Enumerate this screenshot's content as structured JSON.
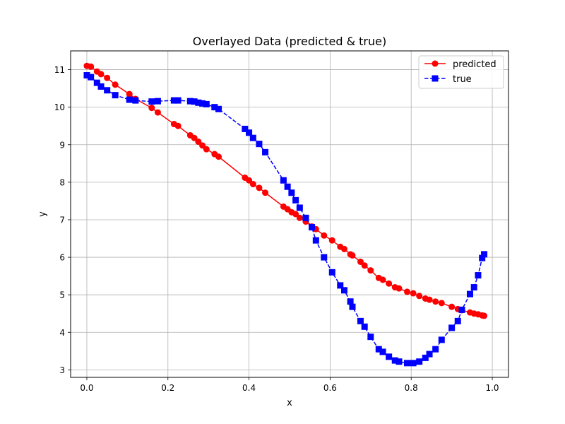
{
  "chart_data": {
    "type": "line",
    "title": "Overlayed Data (predicted & true)",
    "xlabel": "x",
    "ylabel": "y",
    "xlim": [
      -0.04,
      1.04
    ],
    "ylim": [
      2.8,
      11.5
    ],
    "xticks": [
      0.0,
      0.2,
      0.4,
      0.6,
      0.8,
      1.0
    ],
    "xtick_labels": [
      "0.0",
      "0.2",
      "0.4",
      "0.6",
      "0.8",
      "1.0"
    ],
    "yticks": [
      3,
      4,
      5,
      6,
      7,
      8,
      9,
      10,
      11
    ],
    "ytick_labels": [
      "3",
      "4",
      "5",
      "6",
      "7",
      "8",
      "9",
      "10",
      "11"
    ],
    "grid": true,
    "legend_position": "top-right",
    "series": [
      {
        "name": "predicted",
        "color": "#ff0000",
        "linestyle": "solid",
        "marker": "circle",
        "x": [
          0.0,
          0.01,
          0.025,
          0.035,
          0.05,
          0.07,
          0.105,
          0.12,
          0.16,
          0.175,
          0.215,
          0.225,
          0.255,
          0.265,
          0.275,
          0.285,
          0.295,
          0.315,
          0.325,
          0.39,
          0.4,
          0.41,
          0.425,
          0.44,
          0.485,
          0.495,
          0.505,
          0.515,
          0.525,
          0.54,
          0.555,
          0.565,
          0.585,
          0.605,
          0.625,
          0.635,
          0.65,
          0.655,
          0.675,
          0.685,
          0.7,
          0.72,
          0.73,
          0.745,
          0.76,
          0.77,
          0.79,
          0.805,
          0.82,
          0.835,
          0.845,
          0.86,
          0.875,
          0.9,
          0.915,
          0.925,
          0.945,
          0.955,
          0.965,
          0.975,
          0.98
        ],
        "y": [
          11.1,
          11.08,
          10.95,
          10.88,
          10.78,
          10.6,
          10.35,
          10.22,
          9.98,
          9.86,
          9.55,
          9.5,
          9.25,
          9.18,
          9.08,
          8.98,
          8.88,
          8.75,
          8.68,
          8.12,
          8.05,
          7.95,
          7.85,
          7.72,
          7.35,
          7.28,
          7.2,
          7.15,
          7.05,
          6.95,
          6.82,
          6.75,
          6.58,
          6.45,
          6.28,
          6.22,
          6.08,
          6.05,
          5.88,
          5.78,
          5.65,
          5.45,
          5.4,
          5.3,
          5.2,
          5.17,
          5.08,
          5.04,
          4.97,
          4.9,
          4.87,
          4.82,
          4.78,
          4.68,
          4.62,
          4.59,
          4.53,
          4.5,
          4.48,
          4.45,
          4.44
        ]
      },
      {
        "name": "true",
        "color": "#0000ff",
        "linestyle": "dashed",
        "marker": "square",
        "x": [
          0.0,
          0.01,
          0.025,
          0.035,
          0.05,
          0.07,
          0.105,
          0.12,
          0.16,
          0.175,
          0.215,
          0.225,
          0.255,
          0.265,
          0.275,
          0.285,
          0.295,
          0.315,
          0.325,
          0.39,
          0.4,
          0.41,
          0.425,
          0.44,
          0.485,
          0.495,
          0.505,
          0.515,
          0.525,
          0.54,
          0.555,
          0.565,
          0.585,
          0.605,
          0.625,
          0.635,
          0.65,
          0.655,
          0.675,
          0.685,
          0.7,
          0.72,
          0.73,
          0.745,
          0.76,
          0.77,
          0.79,
          0.805,
          0.82,
          0.835,
          0.845,
          0.86,
          0.875,
          0.9,
          0.915,
          0.925,
          0.945,
          0.955,
          0.965,
          0.975,
          0.98
        ],
        "y": [
          10.85,
          10.8,
          10.65,
          10.55,
          10.45,
          10.32,
          10.2,
          10.18,
          10.15,
          10.16,
          10.18,
          10.18,
          10.16,
          10.15,
          10.12,
          10.1,
          10.08,
          10.0,
          9.95,
          9.42,
          9.32,
          9.18,
          9.02,
          8.8,
          8.05,
          7.88,
          7.72,
          7.52,
          7.32,
          7.05,
          6.8,
          6.45,
          6.0,
          5.6,
          5.25,
          5.12,
          4.82,
          4.68,
          4.3,
          4.15,
          3.88,
          3.55,
          3.48,
          3.35,
          3.25,
          3.22,
          3.18,
          3.18,
          3.22,
          3.32,
          3.42,
          3.55,
          3.8,
          4.12,
          4.3,
          4.6,
          5.02,
          5.2,
          5.52,
          5.98,
          6.08
        ]
      }
    ]
  }
}
